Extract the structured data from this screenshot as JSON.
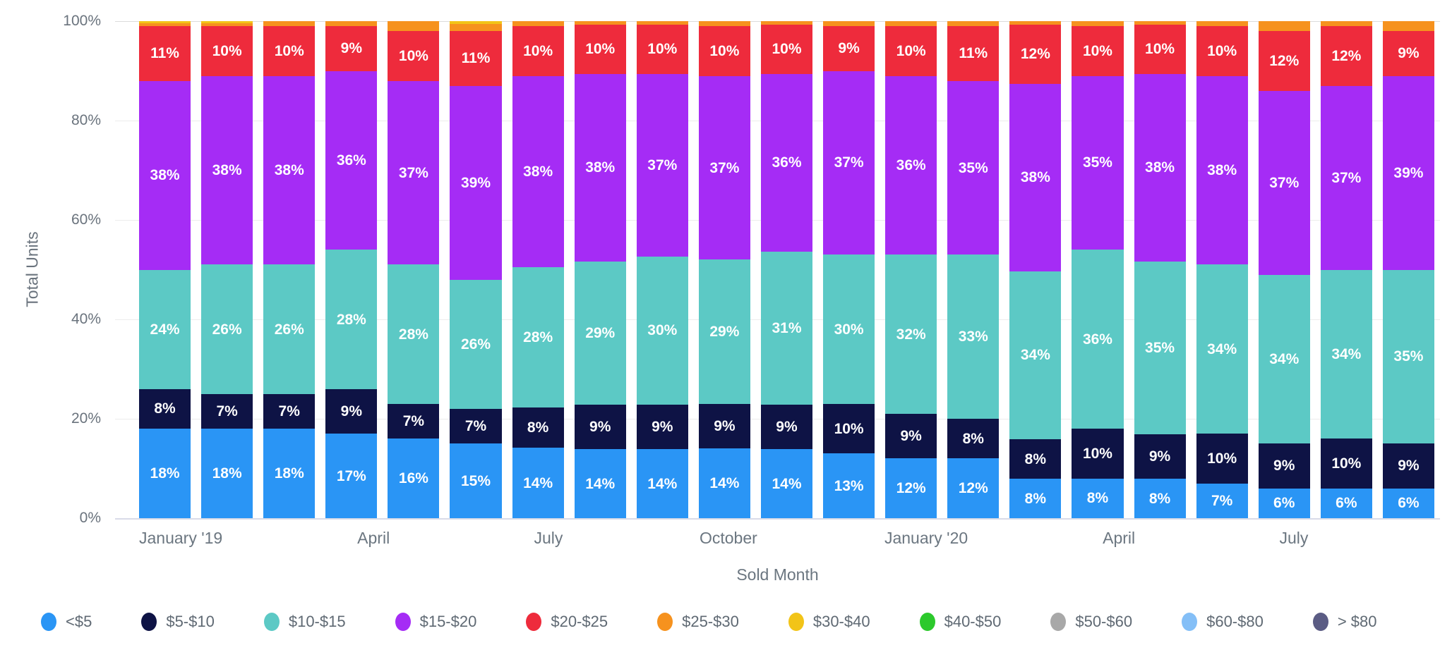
{
  "chart_data": {
    "type": "bar",
    "stacked": true,
    "stack_mode": "percent",
    "title": "",
    "xlabel": "Sold Month",
    "ylabel": "Total Units",
    "ylim": [
      0,
      100
    ],
    "grid": "horizontal",
    "legend_position": "bottom",
    "y_ticks": [
      "100%",
      "80%",
      "60%",
      "40%",
      "20%",
      "0%"
    ],
    "categories": [
      "January '19",
      "",
      "",
      "April",
      "",
      "",
      "July",
      "",
      "",
      "October",
      "",
      "",
      "January '20",
      "",
      "",
      "April",
      "",
      "",
      "July",
      "",
      ""
    ],
    "label_format": "percent",
    "series": [
      {
        "name": "<$5",
        "color": "#2a95f5",
        "values": [
          18,
          18,
          18,
          17,
          16,
          15,
          14,
          14,
          14,
          14,
          14,
          13,
          12,
          12,
          8,
          8,
          8,
          7,
          6,
          6,
          6
        ]
      },
      {
        "name": "$5-$10",
        "color": "#0e1345",
        "values": [
          8,
          7,
          7,
          9,
          7,
          7,
          8,
          9,
          9,
          9,
          9,
          10,
          9,
          8,
          8,
          10,
          9,
          10,
          9,
          10,
          9
        ]
      },
      {
        "name": "$10-$15",
        "color": "#5cc9c5",
        "values": [
          24,
          26,
          26,
          28,
          28,
          26,
          28,
          29,
          30,
          29,
          31,
          30,
          32,
          33,
          34,
          36,
          35,
          34,
          34,
          34,
          35
        ]
      },
      {
        "name": "$15-$20",
        "color": "#a52cf5",
        "values": [
          38,
          38,
          38,
          36,
          37,
          39,
          38,
          38,
          37,
          37,
          36,
          37,
          36,
          35,
          38,
          35,
          38,
          38,
          37,
          37,
          39
        ]
      },
      {
        "name": "$20-$25",
        "color": "#ee2b3c",
        "values": [
          11,
          10,
          10,
          9,
          10,
          11,
          10,
          10,
          10,
          10,
          10,
          9,
          10,
          11,
          12,
          10,
          10,
          10,
          12,
          12,
          9
        ]
      },
      {
        "name": "$25-$30",
        "color": "#f6921e",
        "values": [
          0.6,
          0.6,
          1,
          1,
          2,
          1.4,
          1,
          0.7,
          0.7,
          1,
          0.7,
          1,
          1,
          1,
          0.7,
          1,
          0.7,
          1,
          2,
          1,
          2
        ]
      },
      {
        "name": "$30-$40",
        "color": "#f2c418",
        "values": [
          0.4,
          0.4,
          0,
          0,
          0,
          0.6,
          0,
          0,
          0,
          0,
          0,
          0,
          0,
          0,
          0,
          0,
          0,
          0,
          0,
          0,
          0
        ]
      },
      {
        "name": "$40-$50",
        "color": "#2cc92c",
        "values": [
          0,
          0,
          0,
          0,
          0,
          0,
          0,
          0,
          0,
          0,
          0,
          0,
          0,
          0,
          0,
          0,
          0,
          0,
          0,
          0,
          0
        ]
      },
      {
        "name": "$50-$60",
        "color": "#a8a8a8",
        "values": [
          0,
          0,
          0,
          0,
          0,
          0,
          0,
          0,
          0,
          0,
          0,
          0,
          0,
          0,
          0,
          0,
          0,
          0,
          0,
          0,
          0
        ]
      },
      {
        "name": "$60-$80",
        "color": "#84bff7",
        "values": [
          0,
          0,
          0,
          0,
          0,
          0,
          0,
          0,
          0,
          0,
          0,
          0,
          0,
          0,
          0,
          0,
          0,
          0,
          0,
          0,
          0
        ]
      },
      {
        "name": "> $80",
        "color": "#5b5c84",
        "values": [
          0,
          0,
          0,
          0,
          0,
          0,
          0,
          0,
          0,
          0,
          0,
          0,
          0,
          0,
          0,
          0,
          0,
          0,
          0,
          0,
          0
        ]
      }
    ]
  }
}
